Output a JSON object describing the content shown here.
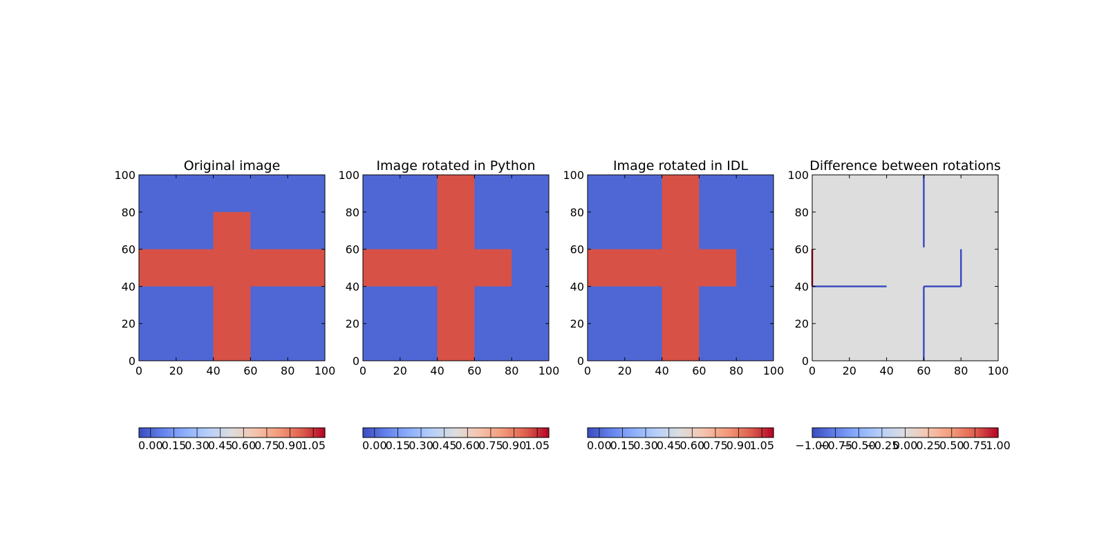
{
  "chart_data": [
    {
      "type": "heatmap",
      "title": "Original image",
      "colormap": "coolwarm",
      "xlim": [
        0,
        100
      ],
      "ylim": [
        100,
        0
      ],
      "xticks": [
        0,
        20,
        40,
        60,
        80,
        100
      ],
      "yticks": [
        0,
        20,
        40,
        60,
        80,
        100
      ],
      "background_value": 0.0,
      "rects": [
        {
          "x": [
            40,
            60
          ],
          "y": [
            0,
            80
          ],
          "value": 1.0
        },
        {
          "x": [
            0,
            100
          ],
          "y": [
            40,
            60
          ],
          "value": 1.0
        }
      ],
      "lines": [],
      "colorbar": {
        "vmin": -0.075,
        "vmax": 1.125,
        "ticks": [
          0.0,
          0.15,
          0.3,
          0.45,
          0.6,
          0.75,
          0.9,
          1.05
        ],
        "tick_labels": [
          "0.00",
          "0.15",
          "0.30",
          "0.45",
          "0.60",
          "0.75",
          "0.90",
          "1.05"
        ]
      }
    },
    {
      "type": "heatmap",
      "title": "Image rotated in Python",
      "colormap": "coolwarm",
      "xlim": [
        0,
        100
      ],
      "ylim": [
        100,
        0
      ],
      "xticks": [
        0,
        20,
        40,
        60,
        80,
        100
      ],
      "yticks": [
        0,
        20,
        40,
        60,
        80,
        100
      ],
      "background_value": 0.0,
      "rects": [
        {
          "x": [
            40,
            60
          ],
          "y": [
            0,
            100
          ],
          "value": 1.0
        },
        {
          "x": [
            0,
            80
          ],
          "y": [
            40,
            60
          ],
          "value": 1.0
        }
      ],
      "lines": [],
      "colorbar": {
        "vmin": -0.075,
        "vmax": 1.125,
        "ticks": [
          0.0,
          0.15,
          0.3,
          0.45,
          0.6,
          0.75,
          0.9,
          1.05
        ],
        "tick_labels": [
          "0.00",
          "0.15",
          "0.30",
          "0.45",
          "0.60",
          "0.75",
          "0.90",
          "1.05"
        ]
      }
    },
    {
      "type": "heatmap",
      "title": "Image rotated in IDL",
      "colormap": "coolwarm",
      "xlim": [
        0,
        100
      ],
      "ylim": [
        100,
        0
      ],
      "xticks": [
        0,
        20,
        40,
        60,
        80,
        100
      ],
      "yticks": [
        0,
        20,
        40,
        60,
        80,
        100
      ],
      "background_value": 0.0,
      "rects": [
        {
          "x": [
            40,
            60
          ],
          "y": [
            0,
            100
          ],
          "value": 1.0
        },
        {
          "x": [
            0,
            80
          ],
          "y": [
            40,
            60
          ],
          "value": 1.0
        }
      ],
      "lines": [],
      "colorbar": {
        "vmin": -0.075,
        "vmax": 1.125,
        "ticks": [
          0.0,
          0.15,
          0.3,
          0.45,
          0.6,
          0.75,
          0.9,
          1.05
        ],
        "tick_labels": [
          "0.00",
          "0.15",
          "0.30",
          "0.45",
          "0.60",
          "0.75",
          "0.90",
          "1.05"
        ]
      }
    },
    {
      "type": "heatmap",
      "title": "Difference between rotations",
      "colormap": "coolwarm",
      "xlim": [
        0,
        100
      ],
      "ylim": [
        100,
        0
      ],
      "xticks": [
        0,
        20,
        40,
        60,
        80,
        100
      ],
      "yticks": [
        0,
        20,
        40,
        60,
        80,
        100
      ],
      "background_value": 0.0,
      "rects": [],
      "lines": [
        {
          "x": [
            0,
            0
          ],
          "y": [
            40,
            60
          ],
          "value": 1.0
        },
        {
          "x": [
            0,
            40
          ],
          "y": [
            40,
            40
          ],
          "value": -1.0
        },
        {
          "x": [
            60,
            60
          ],
          "y": [
            0,
            40
          ],
          "value": -1.0
        },
        {
          "x": [
            60,
            80
          ],
          "y": [
            40,
            40
          ],
          "value": -1.0
        },
        {
          "x": [
            80,
            80
          ],
          "y": [
            40,
            60
          ],
          "value": -1.0
        },
        {
          "x": [
            60,
            60
          ],
          "y": [
            61,
            100
          ],
          "value": -1.0
        }
      ],
      "colorbar": {
        "vmin": -1.0,
        "vmax": 1.0,
        "ticks": [
          -1.0,
          -0.75,
          -0.5,
          -0.25,
          0.0,
          0.25,
          0.5,
          0.75,
          1.0
        ],
        "tick_labels": [
          "−1.00",
          "−0.75",
          "−0.50",
          "−0.25",
          "0.00",
          "0.25",
          "0.50",
          "0.75",
          "1.00"
        ]
      }
    }
  ]
}
